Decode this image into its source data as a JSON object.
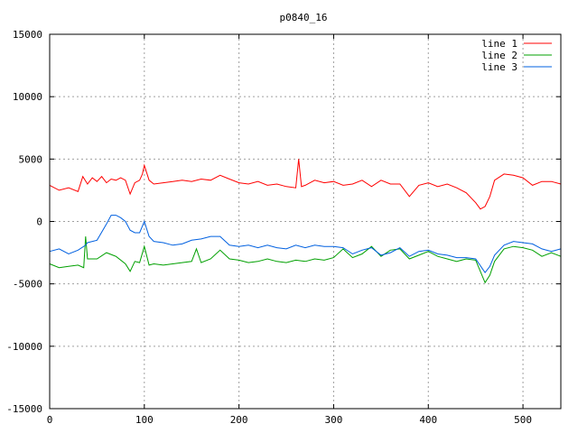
{
  "chart_data": {
    "type": "line",
    "title": "p0840_16",
    "xlabel": "",
    "ylabel": "",
    "xlim": [
      0,
      540
    ],
    "ylim": [
      -15000,
      15000
    ],
    "xticks": [
      0,
      100,
      200,
      300,
      400,
      500
    ],
    "yticks": [
      -15000,
      -10000,
      -5000,
      0,
      5000,
      10000,
      15000
    ],
    "grid": true,
    "legend_position": "top-right",
    "series": [
      {
        "name": "line 1",
        "color": "#ff0000",
        "x": [
          0,
          10,
          20,
          30,
          35,
          40,
          45,
          50,
          55,
          60,
          65,
          70,
          75,
          80,
          85,
          90,
          95,
          98,
          100,
          105,
          110,
          120,
          130,
          140,
          150,
          160,
          170,
          180,
          190,
          200,
          210,
          220,
          230,
          240,
          250,
          260,
          263,
          266,
          270,
          280,
          290,
          300,
          310,
          320,
          330,
          340,
          350,
          360,
          370,
          380,
          390,
          400,
          410,
          420,
          430,
          440,
          450,
          455,
          460,
          465,
          470,
          480,
          490,
          500,
          510,
          520,
          530,
          540
        ],
        "values": [
          2900,
          2500,
          2700,
          2400,
          3600,
          3000,
          3500,
          3200,
          3600,
          3100,
          3400,
          3300,
          3500,
          3300,
          2200,
          3100,
          3300,
          3800,
          4500,
          3300,
          3000,
          3100,
          3200,
          3300,
          3200,
          3400,
          3300,
          3700,
          3400,
          3100,
          3000,
          3200,
          2900,
          3000,
          2800,
          2700,
          5000,
          2800,
          2900,
          3300,
          3100,
          3200,
          2900,
          3000,
          3300,
          2800,
          3300,
          3000,
          3000,
          2000,
          2900,
          3100,
          2800,
          3000,
          2700,
          2300,
          1500,
          1000,
          1200,
          2000,
          3300,
          3800,
          3700,
          3500,
          2900,
          3200,
          3200,
          3000
        ]
      },
      {
        "name": "line 2",
        "color": "#00a000",
        "x": [
          0,
          10,
          20,
          30,
          36,
          38,
          40,
          50,
          60,
          70,
          80,
          85,
          90,
          95,
          100,
          105,
          110,
          120,
          130,
          140,
          150,
          155,
          160,
          170,
          180,
          190,
          200,
          210,
          220,
          230,
          240,
          250,
          260,
          270,
          280,
          290,
          300,
          310,
          320,
          330,
          340,
          350,
          360,
          370,
          380,
          390,
          400,
          410,
          420,
          430,
          440,
          450,
          460,
          465,
          470,
          480,
          490,
          500,
          510,
          520,
          530,
          540
        ],
        "values": [
          -3400,
          -3700,
          -3600,
          -3500,
          -3700,
          -1200,
          -3000,
          -3000,
          -2500,
          -2800,
          -3400,
          -4000,
          -3200,
          -3300,
          -2000,
          -3500,
          -3400,
          -3500,
          -3400,
          -3300,
          -3200,
          -2200,
          -3300,
          -3000,
          -2300,
          -3000,
          -3100,
          -3300,
          -3200,
          -3000,
          -3200,
          -3300,
          -3100,
          -3200,
          -3000,
          -3100,
          -2900,
          -2200,
          -2900,
          -2600,
          -2000,
          -2800,
          -2300,
          -2200,
          -3000,
          -2700,
          -2400,
          -2800,
          -3000,
          -3200,
          -3000,
          -3100,
          -4900,
          -4300,
          -3200,
          -2200,
          -2000,
          -2100,
          -2300,
          -2800,
          -2500,
          -2800
        ]
      },
      {
        "name": "line 3",
        "color": "#0060e0",
        "x": [
          0,
          10,
          20,
          30,
          38,
          40,
          50,
          60,
          65,
          70,
          75,
          80,
          85,
          90,
          95,
          100,
          105,
          110,
          120,
          130,
          140,
          150,
          160,
          170,
          180,
          190,
          200,
          210,
          220,
          230,
          240,
          250,
          260,
          270,
          280,
          290,
          300,
          310,
          320,
          330,
          340,
          350,
          360,
          370,
          380,
          390,
          400,
          410,
          420,
          430,
          440,
          450,
          460,
          465,
          470,
          480,
          490,
          500,
          510,
          520,
          530,
          540
        ],
        "values": [
          -2400,
          -2200,
          -2600,
          -2300,
          -1900,
          -1700,
          -1500,
          -200,
          500,
          500,
          300,
          0,
          -700,
          -900,
          -900,
          0,
          -1200,
          -1600,
          -1700,
          -1900,
          -1800,
          -1500,
          -1400,
          -1200,
          -1200,
          -1900,
          -2000,
          -1900,
          -2100,
          -1900,
          -2100,
          -2200,
          -1900,
          -2100,
          -1900,
          -2000,
          -2000,
          -2100,
          -2600,
          -2300,
          -2100,
          -2700,
          -2500,
          -2100,
          -2800,
          -2400,
          -2300,
          -2600,
          -2700,
          -2900,
          -2900,
          -3000,
          -4100,
          -3600,
          -2700,
          -1900,
          -1600,
          -1700,
          -1800,
          -2200,
          -2400,
          -2200
        ]
      }
    ]
  }
}
